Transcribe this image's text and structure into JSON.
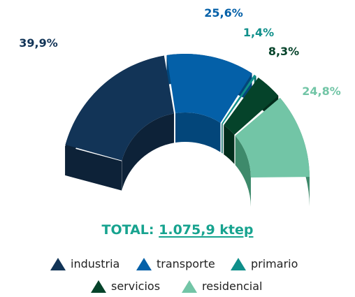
{
  "chart_data": {
    "type": "pie",
    "title": "",
    "total_label": "TOTAL:",
    "total_value": "1.075,9 ktep",
    "slices": [
      {
        "name": "industria",
        "value": 39.9,
        "label": "39,9%",
        "color": "#123457",
        "side_color": "#0d2238"
      },
      {
        "name": "transporte",
        "value": 25.6,
        "label": "25,6%",
        "color": "#0460a8",
        "side_color": "#03467a"
      },
      {
        "name": "primario",
        "value": 1.4,
        "label": "1,4%",
        "color": "#0f8f8a",
        "side_color": "#0a6964"
      },
      {
        "name": "servicios",
        "value": 8.3,
        "label": "8,3%",
        "color": "#05432a",
        "side_color": "#032d1c"
      },
      {
        "name": "residencial",
        "value": 24.8,
        "label": "24,8%",
        "color": "#72c5a6",
        "side_color": "#3e8a6b"
      }
    ],
    "legend": [
      "industria",
      "transporte",
      "primario",
      "servicios",
      "residencial"
    ],
    "legend_placement": "bottom",
    "total_color": "#17a38f"
  }
}
